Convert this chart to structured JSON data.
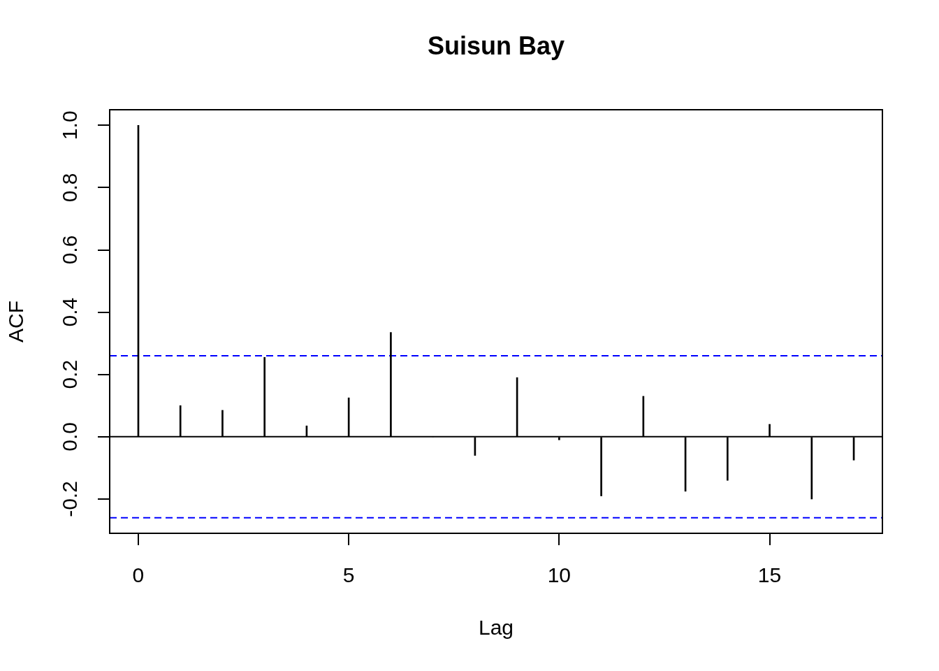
{
  "chart_data": {
    "type": "bar",
    "title": "Suisun Bay",
    "xlabel": "Lag",
    "ylabel": "ACF",
    "x": [
      0,
      1,
      2,
      3,
      4,
      5,
      6,
      7,
      8,
      9,
      10,
      11,
      12,
      13,
      14,
      15,
      16,
      17
    ],
    "values": [
      1.0,
      0.1,
      0.085,
      0.255,
      0.035,
      0.125,
      0.335,
      0,
      -0.06,
      0.19,
      -0.01,
      -0.19,
      0.13,
      -0.175,
      -0.14,
      0.04,
      -0.2,
      -0.075
    ],
    "color": "#000000",
    "xlim": [
      -0.68,
      17.68
    ],
    "ylim": [
      -0.31,
      1.05
    ],
    "xticks": [
      0,
      5,
      10,
      15
    ],
    "yticks": [
      -0.2,
      {
        "value": 0,
        "label": "0.0"
      },
      0.2,
      0.4,
      0.6,
      0.8,
      {
        "value": 1,
        "label": "1.0"
      }
    ],
    "ref_lines": [
      {
        "axis": "y",
        "value": 0,
        "color": "#000000",
        "line_style": "solid"
      },
      {
        "axis": "y",
        "value": 0.26,
        "color": "#0000ff",
        "line_style": "dashed"
      },
      {
        "axis": "y",
        "value": -0.26,
        "color": "#0000ff",
        "line_style": "dashed"
      }
    ]
  }
}
